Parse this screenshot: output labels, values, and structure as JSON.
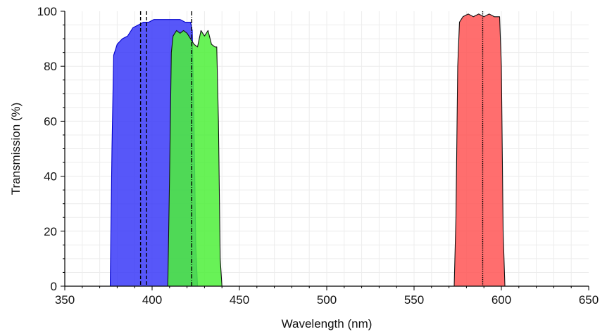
{
  "chart_data": {
    "type": "area",
    "xlabel": "Wavelength (nm)",
    "ylabel": "Transmission (%)",
    "xlim": [
      350,
      650
    ],
    "ylim": [
      0,
      100
    ],
    "x_ticks": [
      "350",
      "400",
      "450",
      "500",
      "550",
      "600",
      "650"
    ],
    "y_ticks": [
      "0",
      "20",
      "40",
      "60",
      "80",
      "100"
    ],
    "grid": true,
    "series": [
      {
        "color": "#3a3af8",
        "edge_color": "#0000cc",
        "x": [
          376,
          377,
          378,
          380,
          383,
          386,
          389,
          392,
          395,
          398,
          401,
          404,
          407,
          410,
          413,
          416,
          419,
          422,
          423,
          424,
          425,
          426
        ],
        "y": [
          0,
          50,
          84,
          88,
          90,
          91,
          94,
          95,
          96,
          96,
          97,
          97,
          97,
          97,
          97,
          97,
          96,
          96,
          93,
          60,
          15,
          0
        ]
      },
      {
        "color": "#4ef03a",
        "edge_color": "#111111",
        "x": [
          409,
          410,
          411,
          412,
          414,
          416,
          418,
          420,
          422,
          424,
          426,
          428,
          430,
          432,
          434,
          436,
          437,
          438,
          439,
          440
        ],
        "y": [
          0,
          40,
          85,
          91,
          93,
          92,
          93,
          92,
          90,
          88,
          87,
          93,
          91,
          93,
          88,
          87,
          87,
          60,
          10,
          0
        ]
      },
      {
        "color": "#ff5555",
        "edge_color": "#111111",
        "x": [
          573,
          574,
          575,
          576,
          578,
          581,
          584,
          587,
          590,
          593,
          596,
          598,
          599,
          600,
          601,
          602
        ],
        "y": [
          0,
          25,
          80,
          96,
          98,
          99,
          98,
          99,
          98,
          99,
          98,
          98,
          98,
          80,
          20,
          0
        ]
      }
    ],
    "reference_lines": [
      {
        "x": 393.4,
        "style": "dashed"
      },
      {
        "x": 396.8,
        "style": "dashed"
      },
      {
        "x": 422.7,
        "style": "dash-dot"
      },
      {
        "x": 589.3,
        "style": "dotted"
      }
    ]
  }
}
